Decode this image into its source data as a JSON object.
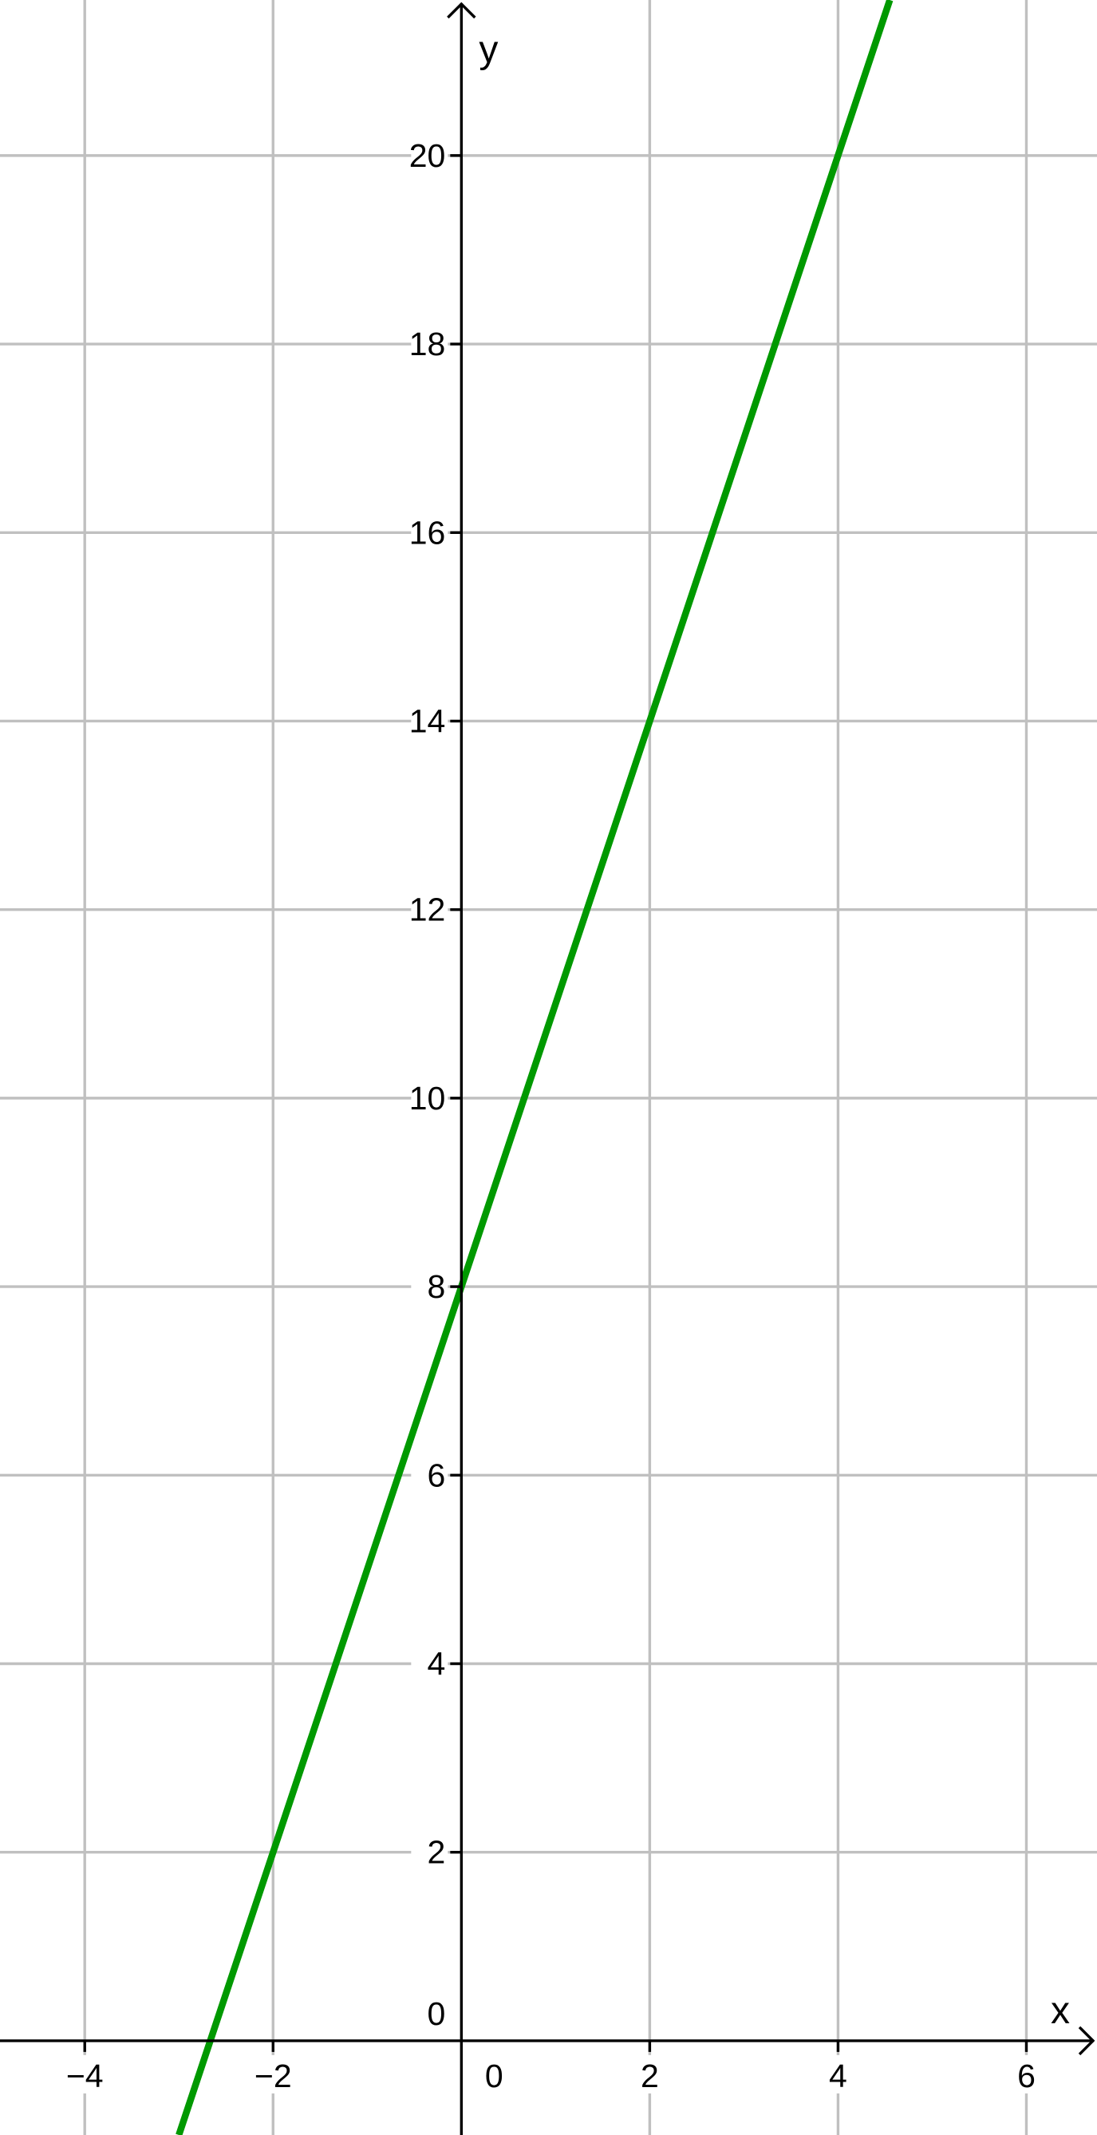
{
  "chart_data": {
    "type": "line",
    "title": "",
    "xlabel": "x",
    "ylabel": "y",
    "xlim": [
      -4.9,
      6.75
    ],
    "ylim": [
      -1.0,
      21.65
    ],
    "grid": true,
    "x_ticks": [
      {
        "value": -4,
        "label": "−4"
      },
      {
        "value": -2,
        "label": "−2"
      },
      {
        "value": 0,
        "label": "0"
      },
      {
        "value": 2,
        "label": "2"
      },
      {
        "value": 4,
        "label": "4"
      },
      {
        "value": 6,
        "label": "6"
      }
    ],
    "y_ticks": [
      {
        "value": 2,
        "label": "2"
      },
      {
        "value": 4,
        "label": "4"
      },
      {
        "value": 6,
        "label": "6"
      },
      {
        "value": 8,
        "label": "8"
      },
      {
        "value": 10,
        "label": "10"
      },
      {
        "value": 12,
        "label": "12"
      },
      {
        "value": 14,
        "label": "14"
      },
      {
        "value": 16,
        "label": "16"
      },
      {
        "value": 18,
        "label": "18"
      },
      {
        "value": 20,
        "label": "20"
      }
    ],
    "series": [
      {
        "color": "#009900",
        "x": [
          -3,
          -2,
          0,
          2,
          4,
          4.55
        ],
        "y": [
          -1,
          2,
          8,
          14,
          20,
          21.65
        ]
      }
    ]
  }
}
